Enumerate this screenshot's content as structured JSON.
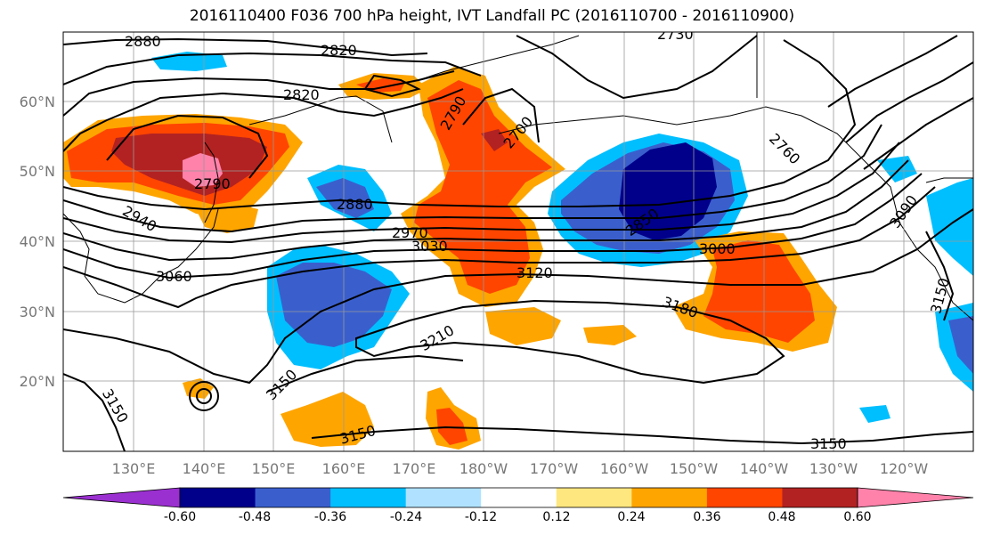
{
  "title": "2016110400 F036 700 hPa height, IVT Landfall PC (2016110700 - 2016110900)",
  "lon_labels": [
    "130°E",
    "140°E",
    "150°E",
    "160°E",
    "170°E",
    "180°W",
    "170°W",
    "160°W",
    "150°W",
    "140°W",
    "130°W",
    "120°W"
  ],
  "lat_labels": [
    "60°N",
    "50°N",
    "40°N",
    "30°N",
    "20°N"
  ],
  "colorbar": {
    "colors": [
      "#9b30d0",
      "#00008b",
      "#3a5fcd",
      "#00bfff",
      "#b0e2ff",
      "#ffffff",
      "#ffe780",
      "#ffa500",
      "#ff4500",
      "#b22222",
      "#ff82ab"
    ],
    "tick_labels": [
      "-0.60",
      "-0.48",
      "-0.36",
      "-0.24",
      "-0.12",
      "0.12",
      "0.24",
      "0.36",
      "0.48",
      "0.60"
    ]
  },
  "contour_labels": [
    "2880",
    "2820",
    "2730",
    "2820",
    "2790",
    "2700",
    "2790",
    "2760",
    "2880",
    "2940",
    "2970",
    "3030",
    "2850",
    "3000",
    "3090",
    "3060",
    "3120",
    "3210",
    "3180",
    "3150",
    "3150",
    "3150",
    "3150",
    "3150"
  ]
}
